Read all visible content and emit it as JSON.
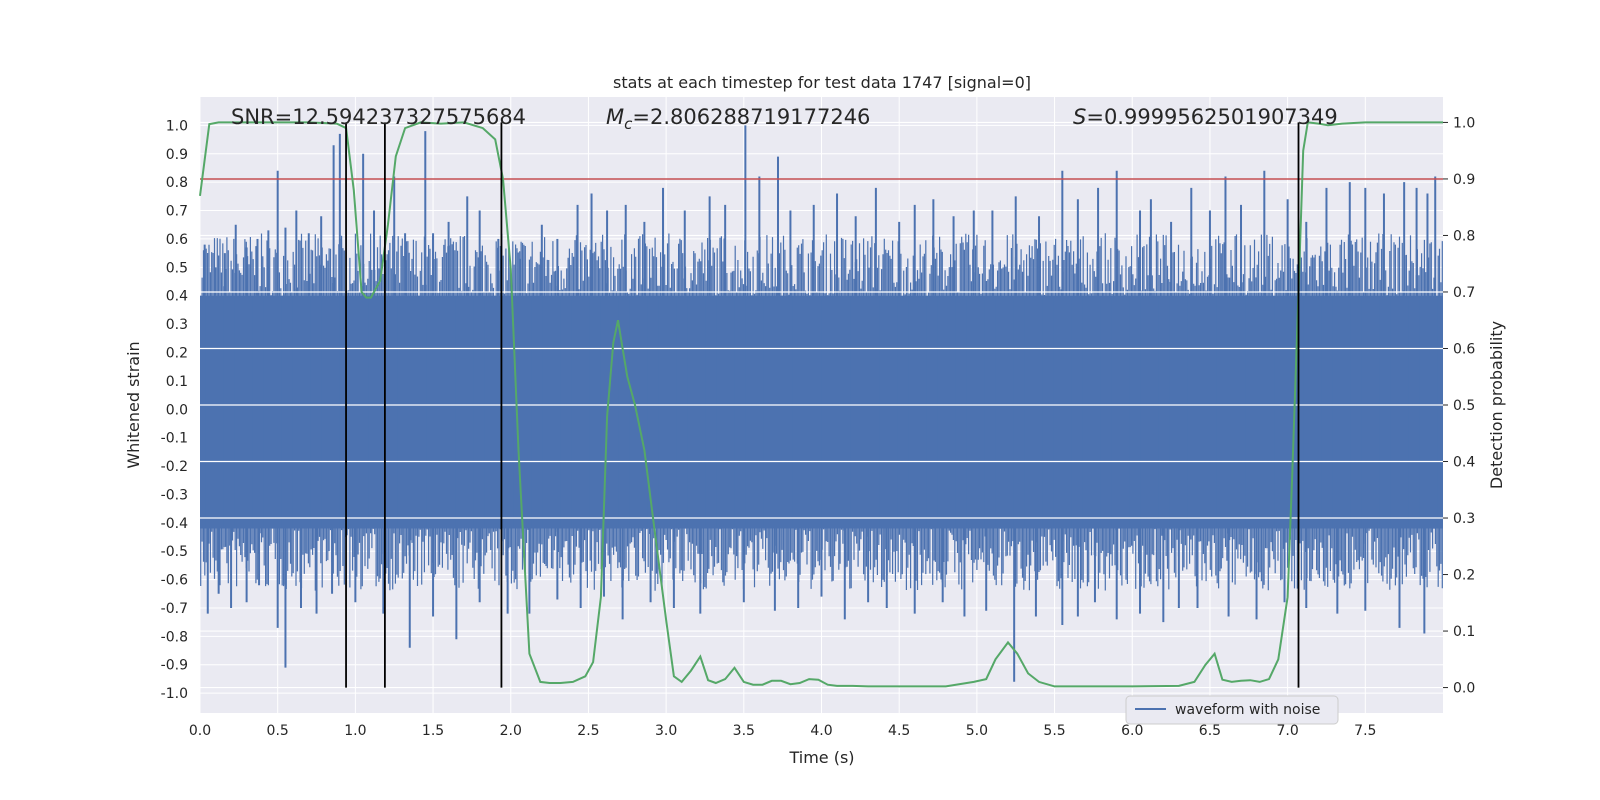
{
  "chart_data": {
    "type": "line",
    "title": "stats at each timestep for test data 1747 [signal=0]",
    "xlabel": "Time (s)",
    "ylabel_left": "Whitened strain",
    "ylabel_right": "Detection probability",
    "xlim": [
      0.0,
      8.0
    ],
    "ylim_left": [
      -1.07,
      1.1
    ],
    "ylim_right": [
      -0.045,
      1.045
    ],
    "grid": true,
    "x_ticks": [
      "0.0",
      "0.5",
      "1.0",
      "1.5",
      "2.0",
      "2.5",
      "3.0",
      "3.5",
      "4.0",
      "4.5",
      "5.0",
      "5.5",
      "6.0",
      "6.5",
      "7.0",
      "7.5"
    ],
    "y_ticks_left": [
      "1.0",
      "0.9",
      "0.8",
      "0.7",
      "0.6",
      "0.5",
      "0.4",
      "0.3",
      "0.2",
      "0.1",
      "0.0",
      "-0.1",
      "-0.2",
      "-0.3",
      "-0.4",
      "-0.5",
      "-0.6",
      "-0.7",
      "-0.8",
      "-0.9",
      "-1.0"
    ],
    "y_ticks_right": [
      "1.0",
      "0.9",
      "0.8",
      "0.7",
      "0.6",
      "0.5",
      "0.4",
      "0.3",
      "0.2",
      "0.1",
      "0.0"
    ],
    "annotations": {
      "snr": "SNR=12.594237327575684",
      "mc_symbol": "M",
      "mc_sub": "c",
      "mc_value": "=2.806288719177246",
      "s_symbol": "S",
      "s_value": "=0.9999562501907349"
    },
    "threshold": {
      "value": 0.9,
      "axis": "right",
      "color": "#c44e52"
    },
    "vlines_x": [
      0.94,
      1.19,
      1.94,
      7.07
    ],
    "legend": {
      "label": "waveform with noise",
      "location": "lower-right"
    },
    "colors": {
      "waveform": "#4c72b0",
      "probability": "#55a868",
      "vline": "#000000",
      "background": "#eaeaf2",
      "grid": "#ffffff"
    },
    "waveform_series": {
      "name": "waveform with noise",
      "envelope_hi": 0.4,
      "envelope_lo": -0.42,
      "peaks_x": [
        0.03,
        0.1,
        0.16,
        0.23,
        0.3,
        0.37,
        0.44,
        0.5,
        0.55,
        0.62,
        0.7,
        0.78,
        0.86,
        0.9,
        1.05,
        1.12,
        1.25,
        1.32,
        1.45,
        1.5,
        1.6,
        1.72,
        1.8,
        1.92,
        2.06,
        2.2,
        2.3,
        2.43,
        2.52,
        2.62,
        2.74,
        2.86,
        2.98,
        3.12,
        3.28,
        3.38,
        3.51,
        3.6,
        3.72,
        3.8,
        3.95,
        4.1,
        4.22,
        4.35,
        4.5,
        4.6,
        4.72,
        4.85,
        4.98,
        5.1,
        5.25,
        5.4,
        5.55,
        5.65,
        5.78,
        5.9,
        6.05,
        6.12,
        6.25,
        6.38,
        6.5,
        6.6,
        6.7,
        6.85,
        7.0,
        7.12,
        7.25,
        7.4,
        7.5,
        7.62,
        7.75,
        7.83,
        7.9,
        7.95
      ],
      "peaks_y": [
        0.58,
        0.5,
        0.55,
        0.65,
        0.57,
        0.6,
        0.63,
        0.84,
        0.64,
        0.7,
        0.62,
        0.68,
        0.93,
        0.97,
        0.9,
        0.7,
        0.82,
        0.62,
        0.98,
        0.62,
        0.66,
        0.75,
        0.7,
        0.6,
        0.53,
        0.65,
        0.6,
        0.72,
        0.76,
        0.7,
        0.72,
        0.66,
        0.78,
        0.7,
        0.75,
        0.72,
        1.0,
        0.82,
        0.89,
        0.7,
        0.72,
        0.76,
        0.68,
        0.78,
        0.66,
        0.72,
        0.74,
        0.68,
        0.7,
        0.7,
        0.75,
        0.68,
        0.84,
        0.74,
        0.78,
        0.84,
        0.7,
        0.74,
        0.66,
        0.78,
        0.7,
        0.82,
        0.72,
        0.84,
        0.74,
        0.66,
        0.78,
        0.8,
        0.78,
        0.76,
        0.8,
        0.78,
        0.76,
        0.82
      ],
      "troughs_x": [
        0.05,
        0.12,
        0.2,
        0.3,
        0.38,
        0.5,
        0.55,
        0.65,
        0.75,
        0.85,
        1.0,
        1.18,
        1.35,
        1.5,
        1.65,
        1.8,
        1.98,
        2.12,
        2.3,
        2.45,
        2.6,
        2.72,
        2.9,
        3.05,
        3.22,
        3.5,
        3.7,
        3.85,
        4.0,
        4.15,
        4.3,
        4.42,
        4.6,
        4.78,
        4.92,
        5.06,
        5.24,
        5.38,
        5.55,
        5.65,
        5.76,
        5.9,
        6.05,
        6.2,
        6.3,
        6.42,
        6.62,
        6.8,
        6.98,
        7.12,
        7.32,
        7.5,
        7.72,
        7.88
      ],
      "troughs_y": [
        -0.72,
        -0.65,
        -0.7,
        -0.68,
        -0.62,
        -0.77,
        -0.91,
        -0.7,
        -0.72,
        -0.65,
        -0.68,
        -0.72,
        -0.84,
        -0.73,
        -0.81,
        -0.68,
        -0.72,
        -0.72,
        -0.67,
        -0.7,
        -0.66,
        -0.74,
        -0.68,
        -0.7,
        -0.72,
        -0.68,
        -0.71,
        -0.7,
        -0.66,
        -0.74,
        -0.68,
        -0.7,
        -0.72,
        -0.68,
        -0.73,
        -0.71,
        -0.96,
        -0.73,
        -0.76,
        -0.73,
        -0.68,
        -0.74,
        -0.72,
        -0.75,
        -0.7,
        -0.7,
        -0.73,
        -0.74,
        -0.68,
        -0.7,
        -0.72,
        -0.71,
        -0.77,
        -0.79
      ]
    },
    "probability_series": {
      "name": "Detection probability",
      "x": [
        0.0,
        0.06,
        0.12,
        0.2,
        0.3,
        0.5,
        0.7,
        0.88,
        0.94,
        0.99,
        1.04,
        1.07,
        1.1,
        1.16,
        1.21,
        1.26,
        1.32,
        1.42,
        1.55,
        1.7,
        1.82,
        1.9,
        1.95,
        2.0,
        2.05,
        2.12,
        2.19,
        2.25,
        2.32,
        2.4,
        2.48,
        2.53,
        2.58,
        2.62,
        2.66,
        2.69,
        2.72,
        2.75,
        2.8,
        2.86,
        2.93,
        3.0,
        3.05,
        3.1,
        3.16,
        3.22,
        3.27,
        3.32,
        3.38,
        3.44,
        3.5,
        3.56,
        3.62,
        3.68,
        3.74,
        3.8,
        3.86,
        3.92,
        3.98,
        4.04,
        4.1,
        4.2,
        4.3,
        4.45,
        4.6,
        4.8,
        4.98,
        5.06,
        5.12,
        5.2,
        5.26,
        5.33,
        5.4,
        5.5,
        5.7,
        6.0,
        6.3,
        6.4,
        6.47,
        6.53,
        6.58,
        6.64,
        6.7,
        6.76,
        6.82,
        6.88,
        6.94,
        7.0,
        7.03,
        7.07,
        7.1,
        7.13,
        7.2,
        7.26,
        7.35,
        7.5,
        7.7,
        8.0
      ],
      "y": [
        0.87,
        0.997,
        1.0,
        1.0,
        1.0,
        1.0,
        1.0,
        0.998,
        0.99,
        0.88,
        0.7,
        0.69,
        0.69,
        0.72,
        0.82,
        0.94,
        0.99,
        1.0,
        0.998,
        1.0,
        0.99,
        0.97,
        0.9,
        0.74,
        0.42,
        0.06,
        0.01,
        0.008,
        0.008,
        0.01,
        0.02,
        0.045,
        0.16,
        0.48,
        0.61,
        0.65,
        0.6,
        0.55,
        0.5,
        0.42,
        0.27,
        0.12,
        0.02,
        0.01,
        0.03,
        0.055,
        0.013,
        0.008,
        0.015,
        0.035,
        0.01,
        0.005,
        0.005,
        0.012,
        0.012,
        0.006,
        0.008,
        0.015,
        0.014,
        0.005,
        0.003,
        0.003,
        0.002,
        0.002,
        0.002,
        0.002,
        0.01,
        0.015,
        0.05,
        0.08,
        0.06,
        0.025,
        0.01,
        0.002,
        0.002,
        0.002,
        0.003,
        0.01,
        0.04,
        0.06,
        0.014,
        0.01,
        0.012,
        0.013,
        0.01,
        0.015,
        0.05,
        0.16,
        0.38,
        0.7,
        0.95,
        1.0,
        0.998,
        0.995,
        0.998,
        1.0,
        1.0,
        1.0
      ]
    }
  }
}
